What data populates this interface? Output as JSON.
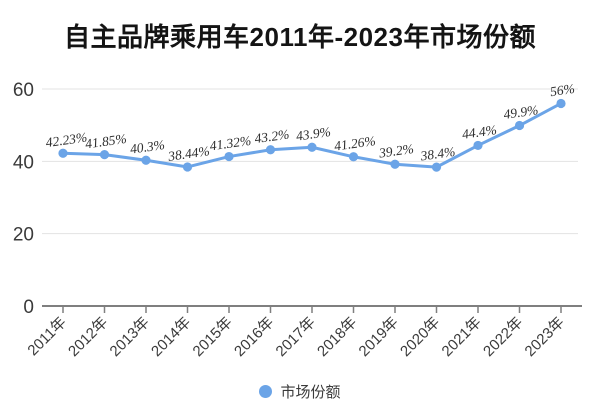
{
  "title": "自主品牌乘用车2011年-2023年市场份额",
  "legend": {
    "label": "市场份额"
  },
  "colors": {
    "series_blue": "#6BA4E7",
    "grid_line": "#e3e3e3",
    "axis_line": "#7f7f7f",
    "tick_label": "#3a3a3a",
    "data_label": "#2e2e2e"
  },
  "chart_data": {
    "type": "line",
    "title": "自主品牌乘用车2011年-2023年市场份额",
    "categories": [
      "2011年",
      "2012年",
      "2013年",
      "2014年",
      "2015年",
      "2016年",
      "2017年",
      "2018年",
      "2019年",
      "2020年",
      "2021年",
      "2022年",
      "2023年"
    ],
    "series": [
      {
        "name": "市场份额",
        "values": [
          42.23,
          41.85,
          40.3,
          38.44,
          41.32,
          43.2,
          43.9,
          41.26,
          39.2,
          38.4,
          44.4,
          49.9,
          56
        ]
      }
    ],
    "data_labels": [
      "42.23%",
      "41.85%",
      "40.3%",
      "38.44%",
      "41.32%",
      "43.2%",
      "43.9%",
      "41.26%",
      "39.2%",
      "38.4%",
      "44.4%",
      "49.9%",
      "56%"
    ],
    "xlabel": "",
    "ylabel": "",
    "ylim": [
      0,
      60
    ],
    "y_ticks": [
      0,
      20,
      40,
      60
    ],
    "grid": true,
    "legend_position": "bottom"
  }
}
